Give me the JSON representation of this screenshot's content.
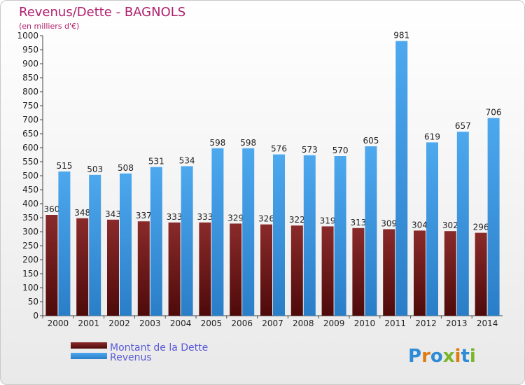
{
  "chart_data": {
    "type": "bar",
    "title": "Revenus/Dette - BAGNOLS",
    "subtitle": "(en milliers d'€)",
    "categories": [
      "2000",
      "2001",
      "2002",
      "2003",
      "2004",
      "2005",
      "2006",
      "2007",
      "2008",
      "2009",
      "2010",
      "2011",
      "2012",
      "2013",
      "2014"
    ],
    "series": [
      {
        "name": "Montant de la Dette",
        "color": "#7a1c1c",
        "values": [
          360,
          348,
          343,
          337,
          333,
          333,
          329,
          326,
          322,
          319,
          313,
          309,
          304,
          302,
          296
        ]
      },
      {
        "name": "Revenus",
        "color": "#3d9be0",
        "values": [
          515,
          503,
          508,
          531,
          534,
          598,
          598,
          576,
          573,
          570,
          605,
          981,
          619,
          657,
          706
        ]
      }
    ],
    "ylim": [
      0,
      1000
    ],
    "yticks": [
      0,
      50,
      100,
      150,
      200,
      250,
      300,
      350,
      400,
      450,
      500,
      550,
      600,
      650,
      700,
      750,
      800,
      850,
      900,
      950,
      1000
    ],
    "grid": false,
    "legend_position": "bottom-left"
  },
  "logo": {
    "text": "Proxiti"
  }
}
